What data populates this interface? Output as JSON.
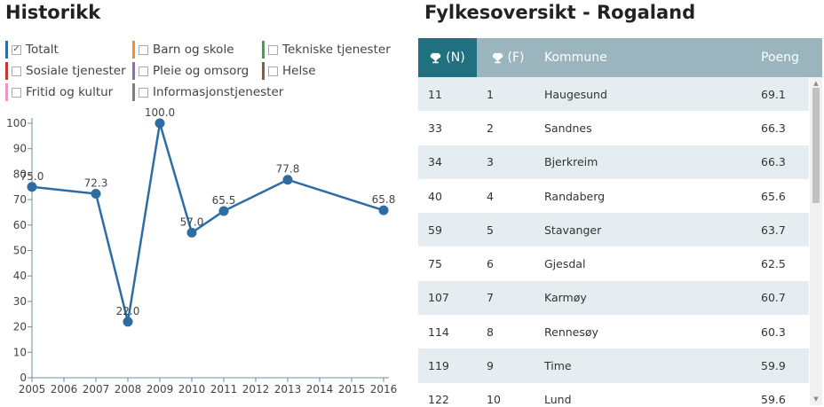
{
  "left_title": "Historikk",
  "right_title": "Fylkesoversikt - Rogaland",
  "legend": [
    {
      "label": "Totalt",
      "color": "#2e6da4",
      "checked": true
    },
    {
      "label": "Barn og skole",
      "color": "#f0922b",
      "checked": false
    },
    {
      "label": "Tekniske tjenester",
      "color": "#3ea64a",
      "checked": false
    },
    {
      "label": "Sosiale tjenester",
      "color": "#c0392b",
      "checked": false
    },
    {
      "label": "Pleie og omsorg",
      "color": "#8e6bbf",
      "checked": false
    },
    {
      "label": "Helse",
      "color": "#8b5a3c",
      "checked": false
    },
    {
      "label": "Fritid og kultur",
      "color": "#e79ac8",
      "checked": false
    },
    {
      "label": "Informasjonstjenester",
      "color": "#7f7f7f",
      "checked": false
    }
  ],
  "chart_data": {
    "type": "line",
    "x": [
      2005,
      2006,
      2007,
      2008,
      2009,
      2010,
      2011,
      2012,
      2013,
      2014,
      2015,
      2016
    ],
    "series": [
      {
        "name": "Totalt",
        "color": "#2e6da4",
        "points": [
          {
            "x": 2005,
            "y": 75.0,
            "label": "75.0"
          },
          {
            "x": 2007,
            "y": 72.3,
            "label": "72.3"
          },
          {
            "x": 2008,
            "y": 22.0,
            "label": "22.0"
          },
          {
            "x": 2009,
            "y": 100.0,
            "label": "100.0"
          },
          {
            "x": 2010,
            "y": 57.0,
            "label": "57.0"
          },
          {
            "x": 2011,
            "y": 65.5,
            "label": "65.5"
          },
          {
            "x": 2013,
            "y": 77.8,
            "label": "77.8"
          },
          {
            "x": 2016,
            "y": 65.8,
            "label": "65.8"
          }
        ]
      }
    ],
    "yticks": [
      0,
      10,
      20,
      30,
      40,
      50,
      60,
      70,
      80,
      90,
      100
    ],
    "ylim": [
      0,
      100
    ],
    "xlim": [
      2005,
      2016
    ],
    "grid": false
  },
  "table": {
    "headers": {
      "n": "(N)",
      "f": "(F)",
      "kommune": "Kommune",
      "poeng": "Poeng"
    },
    "rows": [
      {
        "n": "11",
        "f": "1",
        "kommune": "Haugesund",
        "poeng": "69.1"
      },
      {
        "n": "33",
        "f": "2",
        "kommune": "Sandnes",
        "poeng": "66.3"
      },
      {
        "n": "34",
        "f": "3",
        "kommune": "Bjerkreim",
        "poeng": "66.3"
      },
      {
        "n": "40",
        "f": "4",
        "kommune": "Randaberg",
        "poeng": "65.6"
      },
      {
        "n": "59",
        "f": "5",
        "kommune": "Stavanger",
        "poeng": "63.7"
      },
      {
        "n": "75",
        "f": "6",
        "kommune": "Gjesdal",
        "poeng": "62.5"
      },
      {
        "n": "107",
        "f": "7",
        "kommune": "Karmøy",
        "poeng": "60.7"
      },
      {
        "n": "114",
        "f": "8",
        "kommune": "Rennesøy",
        "poeng": "60.3"
      },
      {
        "n": "119",
        "f": "9",
        "kommune": "Time",
        "poeng": "59.9"
      },
      {
        "n": "122",
        "f": "10",
        "kommune": "Lund",
        "poeng": "59.6"
      }
    ]
  },
  "icons": {
    "header_n": "trophy-icon",
    "header_f": "trophy-icon"
  }
}
